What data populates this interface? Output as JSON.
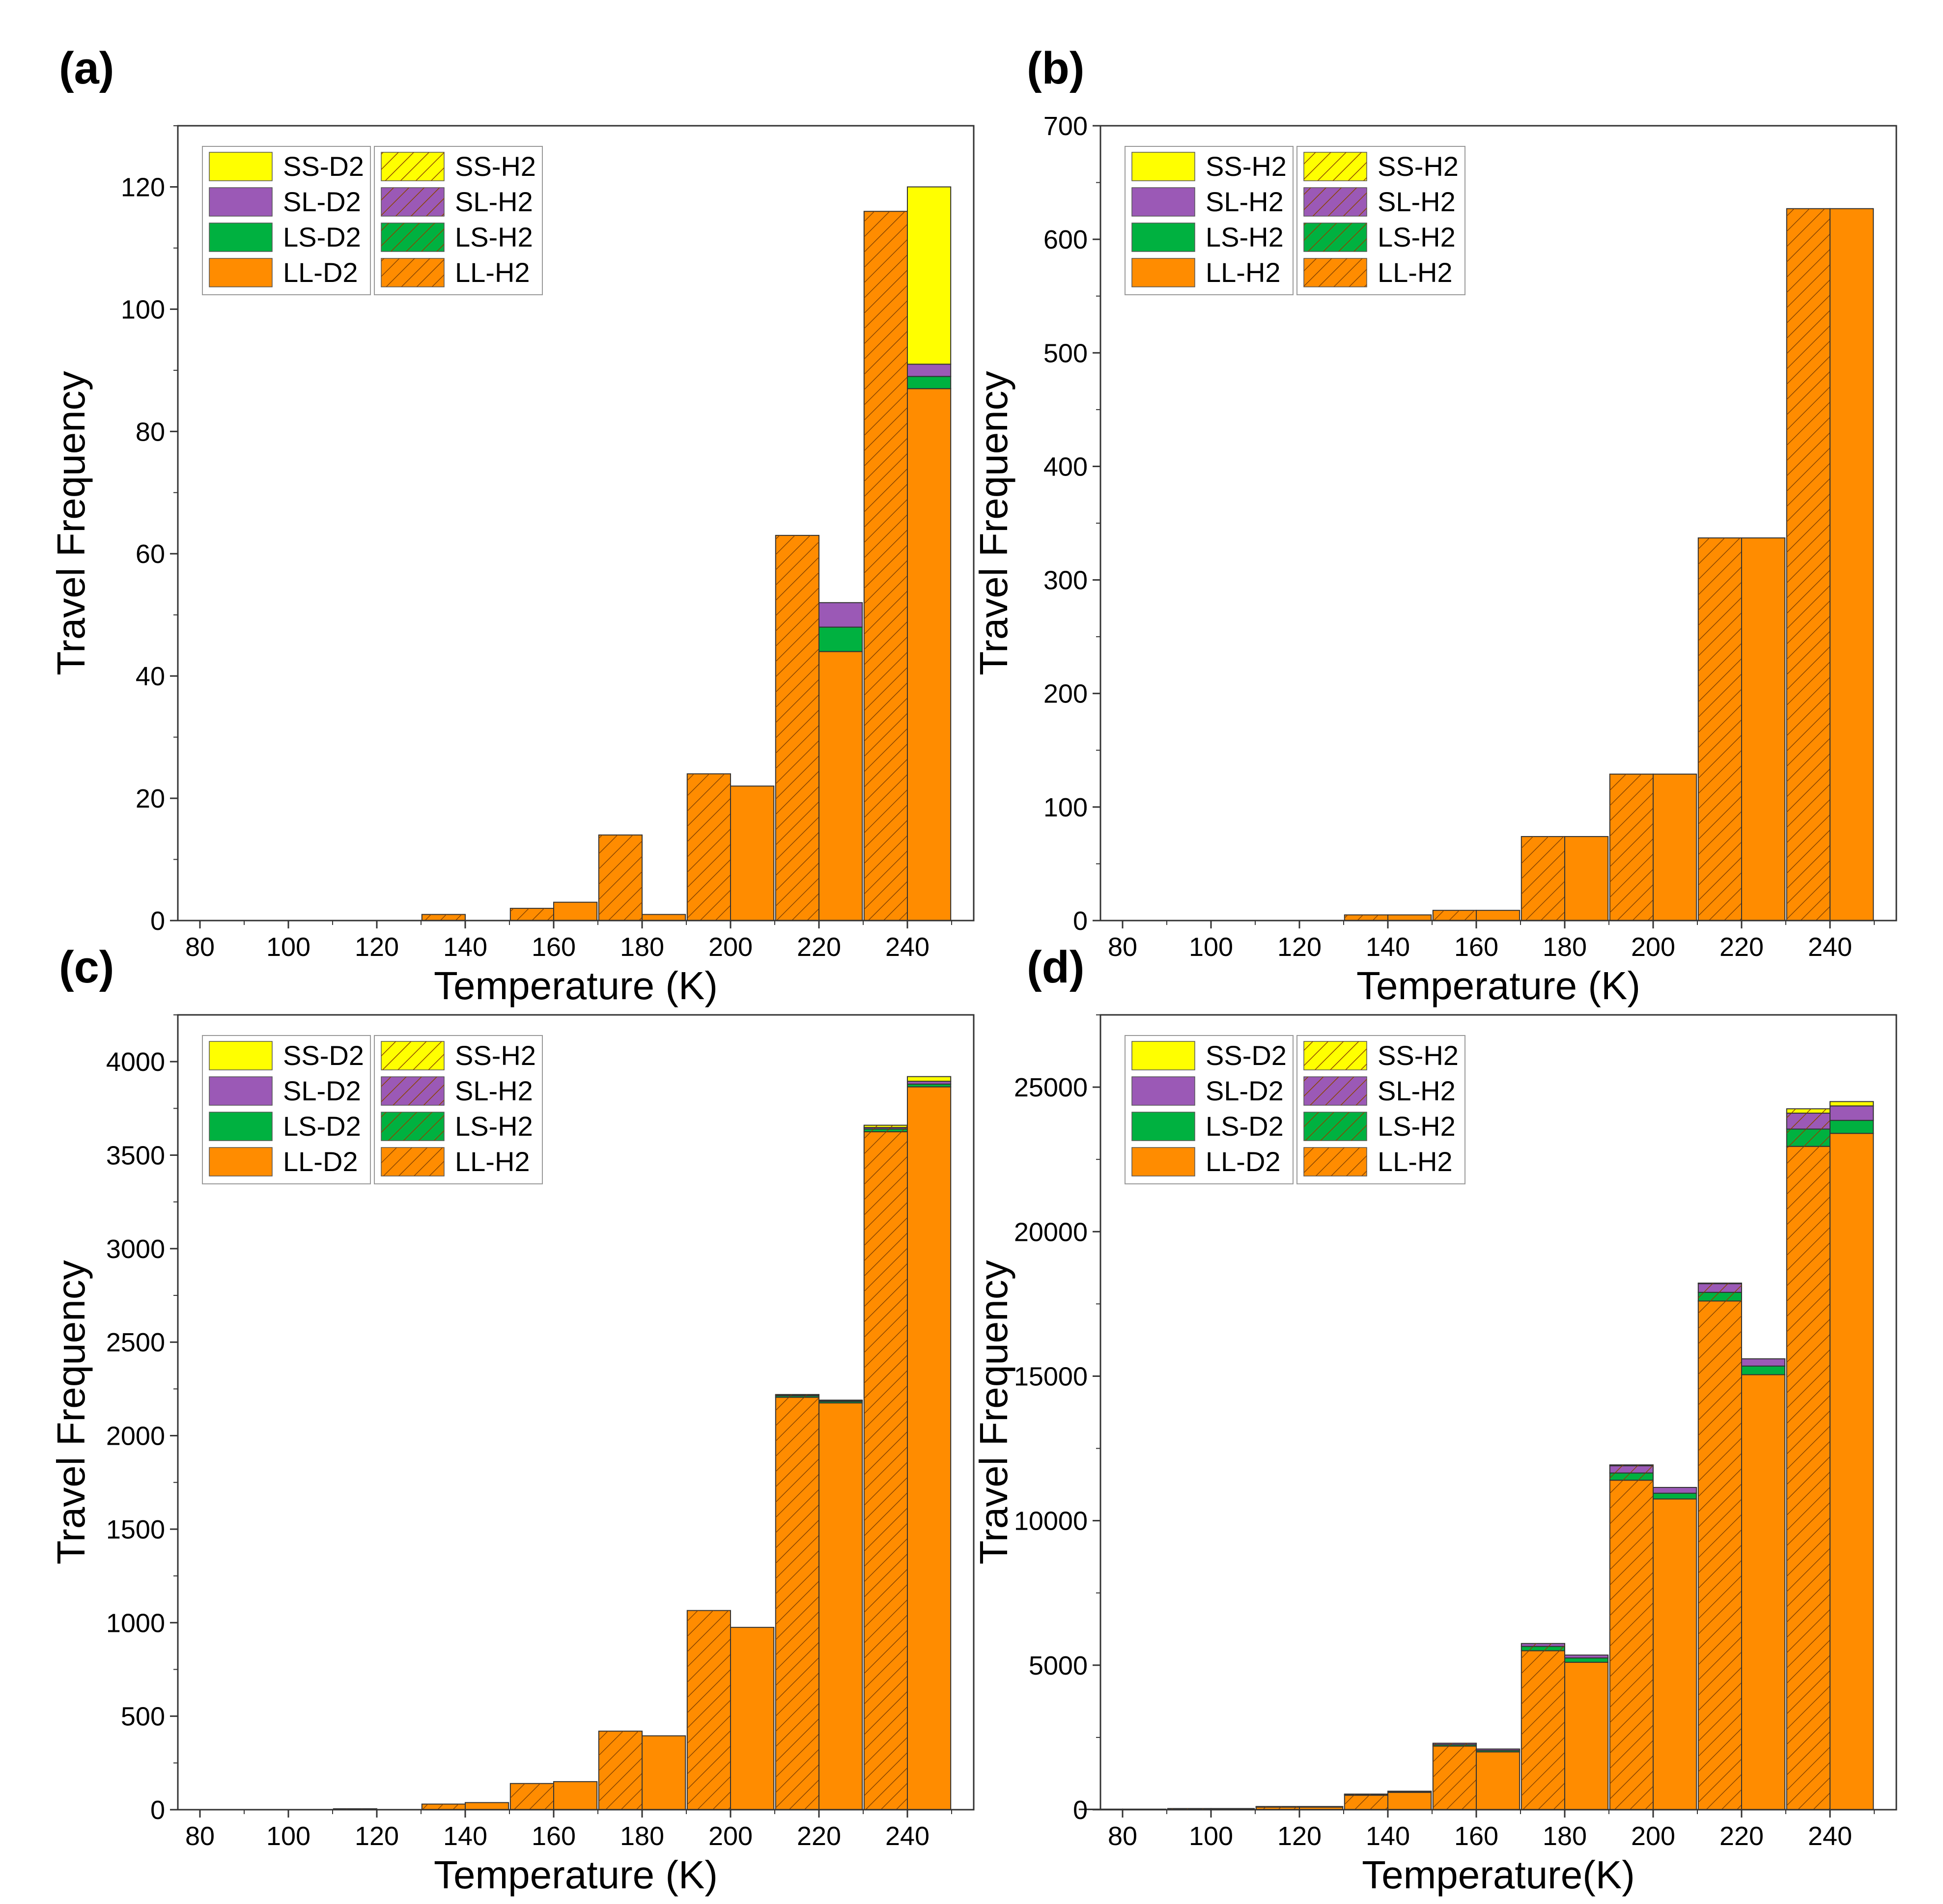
{
  "colors": {
    "SS": "#ffff00",
    "SL": "#9b59b6",
    "LS": "#00b140",
    "LL": "#ff8c00",
    "hatch": "#8a4500",
    "edge": "#333333"
  },
  "chart_data": [
    {
      "panel": "(a)",
      "type": "bar",
      "xlabel": "Temperature (K)",
      "ylabel": "Travel Frequency",
      "xlim": [
        75,
        255
      ],
      "ylim": [
        0,
        130
      ],
      "xticks": [
        "80",
        "100",
        "120",
        "140",
        "160",
        "180",
        "200",
        "220",
        "240"
      ],
      "yticks": [
        "0",
        "20",
        "40",
        "60",
        "80",
        "100",
        "120"
      ],
      "temperatures": [
        80,
        100,
        120,
        140,
        160,
        180,
        200,
        220,
        240
      ],
      "legend": [
        [
          "SS-D2",
          "SS-H2"
        ],
        [
          "SL-D2",
          "SL-H2"
        ],
        [
          "LS-D2",
          "LS-H2"
        ],
        [
          "LL-D2",
          "LL-H2"
        ]
      ],
      "legend_placement": "top-left",
      "stacks": {
        "left": {
          "hatched": true,
          "LL": [
            0,
            0,
            0,
            1,
            2,
            14,
            24,
            63,
            116
          ],
          "LS": [
            0,
            0,
            0,
            0,
            0,
            0,
            0,
            0,
            0
          ],
          "SL": [
            0,
            0,
            0,
            0,
            0,
            0,
            0,
            0,
            0
          ],
          "SS": [
            0,
            0,
            0,
            0,
            0,
            0,
            0,
            0,
            0
          ]
        },
        "right": {
          "hatched": false,
          "LL": [
            0,
            0,
            0,
            0,
            3,
            1,
            22,
            44,
            87
          ],
          "LS": [
            0,
            0,
            0,
            0,
            0,
            0,
            0,
            4,
            2
          ],
          "SL": [
            0,
            0,
            0,
            0,
            0,
            0,
            0,
            4,
            2
          ],
          "SS": [
            0,
            0,
            0,
            0,
            0,
            0,
            0,
            0,
            29
          ]
        }
      }
    },
    {
      "panel": "(b)",
      "type": "bar",
      "xlabel": "Temperature (K)",
      "ylabel": "Travel Frequency",
      "xlim": [
        75,
        255
      ],
      "ylim": [
        0,
        700
      ],
      "xticks": [
        "80",
        "100",
        "120",
        "140",
        "160",
        "180",
        "200",
        "220",
        "240"
      ],
      "yticks": [
        "0",
        "100",
        "200",
        "300",
        "400",
        "500",
        "600",
        "700"
      ],
      "temperatures": [
        80,
        100,
        120,
        140,
        160,
        180,
        200,
        220,
        240
      ],
      "legend": [
        [
          "SS-H2",
          "SS-H2"
        ],
        [
          "SL-H2",
          "SL-H2"
        ],
        [
          "LS-H2",
          "LS-H2"
        ],
        [
          "LL-H2",
          "LL-H2"
        ]
      ],
      "legend_placement": "top-left",
      "stacks": {
        "left": {
          "hatched": true,
          "LL": [
            0,
            0,
            0,
            5,
            9,
            74,
            129,
            337,
            627
          ],
          "LS": [
            0,
            0,
            0,
            0,
            0,
            0,
            0,
            0,
            0
          ],
          "SL": [
            0,
            0,
            0,
            0,
            0,
            0,
            0,
            0,
            0
          ],
          "SS": [
            0,
            0,
            0,
            0,
            0,
            0,
            0,
            0,
            0
          ]
        },
        "right": {
          "hatched": false,
          "LL": [
            0,
            0,
            0,
            5,
            9,
            74,
            129,
            337,
            627
          ],
          "LS": [
            0,
            0,
            0,
            0,
            0,
            0,
            0,
            0,
            0
          ],
          "SL": [
            0,
            0,
            0,
            0,
            0,
            0,
            0,
            0,
            0
          ],
          "SS": [
            0,
            0,
            0,
            0,
            0,
            0,
            0,
            0,
            0
          ]
        }
      }
    },
    {
      "panel": "(c)",
      "type": "bar",
      "xlabel": "Temperature (K)",
      "ylabel": "Travel Frequency",
      "xlim": [
        75,
        255
      ],
      "ylim": [
        0,
        4250
      ],
      "xticks": [
        "80",
        "100",
        "120",
        "140",
        "160",
        "180",
        "200",
        "220",
        "240"
      ],
      "yticks": [
        "0",
        "500",
        "1000",
        "1500",
        "2000",
        "2500",
        "3000",
        "3500",
        "4000"
      ],
      "temperatures": [
        80,
        100,
        120,
        140,
        160,
        180,
        200,
        220,
        240
      ],
      "legend": [
        [
          "SS-D2",
          "SS-H2"
        ],
        [
          "SL-D2",
          "SL-H2"
        ],
        [
          "LS-D2",
          "LS-H2"
        ],
        [
          "LL-D2",
          "LL-H2"
        ]
      ],
      "legend_placement": "top-left",
      "stacks": {
        "left": {
          "hatched": true,
          "LL": [
            0,
            0,
            5,
            30,
            140,
            420,
            1065,
            2205,
            3625
          ],
          "LS": [
            0,
            0,
            0,
            0,
            0,
            0,
            0,
            8,
            15
          ],
          "SL": [
            0,
            0,
            0,
            0,
            0,
            0,
            0,
            5,
            8
          ],
          "SS": [
            0,
            0,
            0,
            0,
            0,
            0,
            0,
            2,
            12
          ]
        },
        "right": {
          "hatched": false,
          "LL": [
            0,
            0,
            0,
            38,
            150,
            395,
            975,
            2175,
            3865
          ],
          "LS": [
            0,
            0,
            0,
            0,
            0,
            0,
            0,
            8,
            15
          ],
          "SL": [
            0,
            0,
            0,
            0,
            0,
            0,
            0,
            5,
            15
          ],
          "SS": [
            0,
            0,
            0,
            0,
            0,
            0,
            0,
            2,
            25
          ]
        }
      }
    },
    {
      "panel": "(d)",
      "type": "bar",
      "xlabel": "Temperature(K)",
      "ylabel": "Travel Frequency",
      "xlim": [
        75,
        255
      ],
      "ylim": [
        0,
        27500
      ],
      "xticks": [
        "80",
        "100",
        "120",
        "140",
        "160",
        "180",
        "200",
        "220",
        "240"
      ],
      "yticks": [
        "0",
        "5000",
        "10000",
        "15000",
        "20000",
        "25000"
      ],
      "temperatures": [
        80,
        100,
        120,
        140,
        160,
        180,
        200,
        220,
        240
      ],
      "legend": [
        [
          "SS-D2",
          "SS-H2"
        ],
        [
          "SL-D2",
          "SL-H2"
        ],
        [
          "LS-D2",
          "LS-H2"
        ],
        [
          "LL-D2",
          "LL-H2"
        ]
      ],
      "legend_placement": "top-left",
      "stacks": {
        "left": {
          "hatched": true,
          "LL": [
            20,
            40,
            100,
            500,
            2200,
            5500,
            11400,
            17600,
            22950
          ],
          "LS": [
            0,
            0,
            5,
            20,
            50,
            150,
            250,
            300,
            600
          ],
          "SL": [
            0,
            0,
            5,
            20,
            50,
            100,
            250,
            300,
            550
          ],
          "SS": [
            0,
            0,
            0,
            0,
            0,
            0,
            30,
            20,
            150
          ]
        },
        "right": {
          "hatched": false,
          "LL": [
            20,
            40,
            100,
            600,
            2000,
            5100,
            10750,
            15050,
            23400
          ],
          "LS": [
            0,
            0,
            5,
            20,
            50,
            150,
            200,
            300,
            450
          ],
          "SL": [
            0,
            0,
            5,
            20,
            50,
            100,
            200,
            250,
            500
          ],
          "SS": [
            0,
            0,
            0,
            0,
            0,
            0,
            0,
            0,
            150
          ]
        }
      }
    }
  ]
}
